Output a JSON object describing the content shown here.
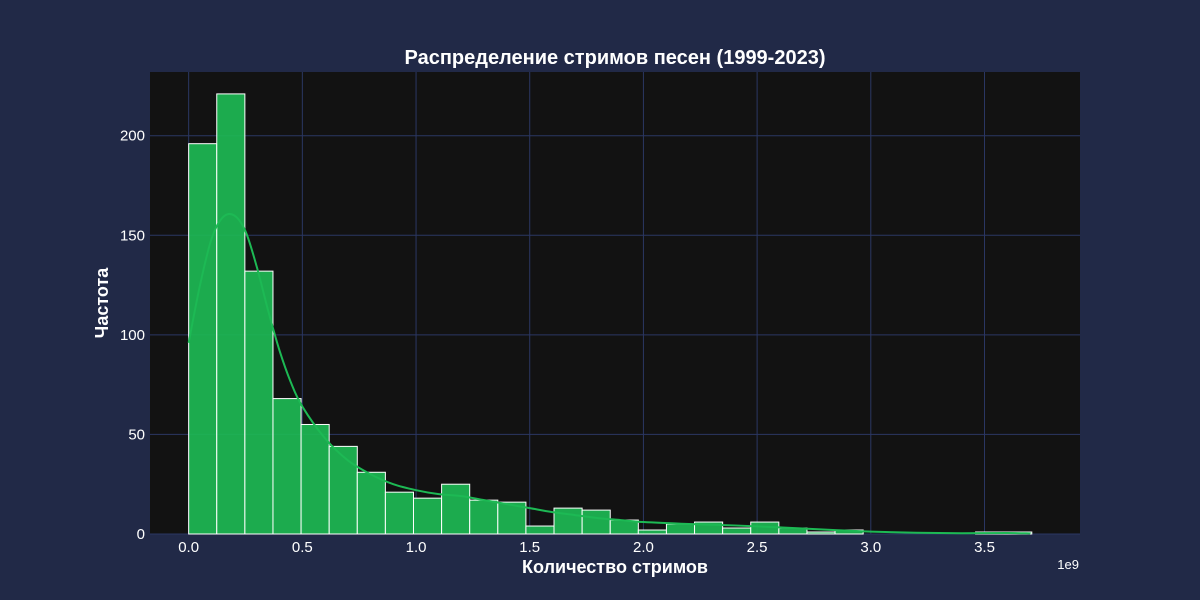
{
  "chart_data": {
    "type": "bar",
    "subtype": "histogram-with-kde",
    "title": "Распределение стримов песен (1999-2023)",
    "xlabel": "Количество стримов",
    "ylabel": "Частота",
    "x_offset_text": "1e9",
    "xlim": [
      -0.17,
      3.92
    ],
    "ylim": [
      0,
      232
    ],
    "xticks": [
      0.0,
      0.5,
      1.0,
      1.5,
      2.0,
      2.5,
      3.0,
      3.5
    ],
    "xtick_labels": [
      "0.0",
      "0.5",
      "1.0",
      "1.5",
      "2.0",
      "2.5",
      "3.0",
      "3.5"
    ],
    "yticks": [
      0,
      50,
      100,
      150,
      200
    ],
    "ytick_labels": [
      "0",
      "50",
      "100",
      "150",
      "200"
    ],
    "grid": true,
    "bin_start": 0.0,
    "bin_width": 0.1236,
    "counts": [
      196,
      221,
      132,
      68,
      55,
      44,
      31,
      21,
      18,
      25,
      17,
      16,
      4,
      13,
      12,
      7,
      2,
      5,
      6,
      3,
      6,
      3,
      1,
      2,
      0,
      0,
      0,
      0,
      1,
      1
    ],
    "kde": {
      "x": [
        0.0,
        0.05,
        0.1,
        0.15,
        0.2,
        0.25,
        0.3,
        0.35,
        0.4,
        0.45,
        0.5,
        0.6,
        0.7,
        0.8,
        0.9,
        1.0,
        1.1,
        1.2,
        1.3,
        1.4,
        1.5,
        1.6,
        1.7,
        1.8,
        1.9,
        2.0,
        2.2,
        2.4,
        2.6,
        2.8,
        3.0,
        3.2,
        3.4,
        3.6,
        3.7
      ],
      "y": [
        96,
        125,
        148,
        159,
        160,
        152,
        134,
        112,
        92,
        76,
        64,
        48,
        37,
        30,
        25,
        22,
        20,
        19,
        17,
        15,
        13,
        11,
        9.5,
        8,
        7,
        6,
        5,
        4.3,
        3.3,
        2.2,
        1.2,
        0.6,
        0.4,
        0.5,
        0.3
      ]
    },
    "colors": {
      "bar_fill": "#1db954",
      "bar_edge": "#ffffff",
      "kde_line": "#1db954",
      "plot_bg": "#121212",
      "figure_bg": "#212947",
      "grid": "#2b3763",
      "text": "#ffffff"
    }
  }
}
